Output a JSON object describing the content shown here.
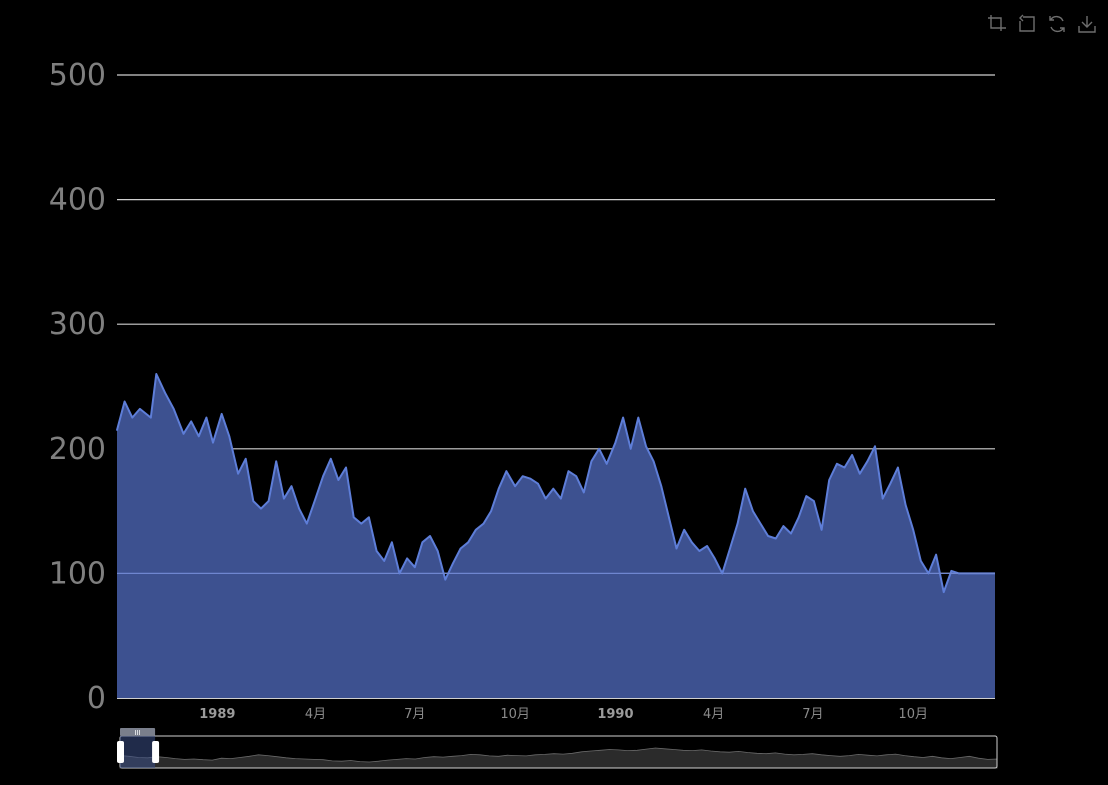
{
  "toolbox": {
    "items": [
      {
        "name": "zoom-area-icon"
      },
      {
        "name": "zoom-reset-icon"
      },
      {
        "name": "restore-icon"
      },
      {
        "name": "save-image-icon"
      }
    ],
    "color": "#6e6e6e"
  },
  "colors": {
    "background": "#000000",
    "area_fill": "#3d5190",
    "line": "#5e7ed8",
    "grid": "#cfcfcf",
    "axis_text": "#7f7f7f"
  },
  "chart_data": {
    "type": "area",
    "title": "",
    "xlabel": "",
    "ylabel": "",
    "ylim": [
      0,
      500
    ],
    "y_ticks": [
      500,
      400,
      300,
      200,
      100,
      0
    ],
    "x_range": [
      "1988-10-01",
      "1990-12-15"
    ],
    "x_ticks": [
      {
        "date": "1989-01-01",
        "label": "1989",
        "bold": true
      },
      {
        "date": "1989-04-01",
        "label": "4月",
        "bold": false
      },
      {
        "date": "1989-07-01",
        "label": "7月",
        "bold": false
      },
      {
        "date": "1989-10-01",
        "label": "10月",
        "bold": false
      },
      {
        "date": "1990-01-01",
        "label": "1990",
        "bold": true
      },
      {
        "date": "1990-04-01",
        "label": "4月",
        "bold": false
      },
      {
        "date": "1990-07-01",
        "label": "7月",
        "bold": false
      },
      {
        "date": "1990-10-01",
        "label": "10月",
        "bold": false
      }
    ],
    "grid": true,
    "points": [
      [
        "1988-10-01",
        215
      ],
      [
        "1988-10-08",
        238
      ],
      [
        "1988-10-15",
        225
      ],
      [
        "1988-10-22",
        232
      ],
      [
        "1988-11-01",
        225
      ],
      [
        "1988-11-06",
        260
      ],
      [
        "1988-11-14",
        245
      ],
      [
        "1988-11-22",
        232
      ],
      [
        "1988-12-01",
        212
      ],
      [
        "1988-12-08",
        222
      ],
      [
        "1988-12-15",
        210
      ],
      [
        "1988-12-22",
        225
      ],
      [
        "1988-12-28",
        205
      ],
      [
        "1989-01-05",
        228
      ],
      [
        "1989-01-12",
        210
      ],
      [
        "1989-01-20",
        180
      ],
      [
        "1989-01-27",
        192
      ],
      [
        "1989-02-03",
        158
      ],
      [
        "1989-02-10",
        152
      ],
      [
        "1989-02-17",
        158
      ],
      [
        "1989-02-24",
        190
      ],
      [
        "1989-03-03",
        160
      ],
      [
        "1989-03-10",
        170
      ],
      [
        "1989-03-17",
        152
      ],
      [
        "1989-03-24",
        140
      ],
      [
        "1989-04-01",
        160
      ],
      [
        "1989-04-08",
        178
      ],
      [
        "1989-04-15",
        192
      ],
      [
        "1989-04-22",
        175
      ],
      [
        "1989-04-29",
        185
      ],
      [
        "1989-05-06",
        145
      ],
      [
        "1989-05-13",
        140
      ],
      [
        "1989-05-20",
        145
      ],
      [
        "1989-05-27",
        118
      ],
      [
        "1989-06-03",
        110
      ],
      [
        "1989-06-10",
        125
      ],
      [
        "1989-06-17",
        100
      ],
      [
        "1989-06-24",
        112
      ],
      [
        "1989-07-01",
        105
      ],
      [
        "1989-07-08",
        125
      ],
      [
        "1989-07-15",
        130
      ],
      [
        "1989-07-22",
        118
      ],
      [
        "1989-07-29",
        95
      ],
      [
        "1989-08-05",
        108
      ],
      [
        "1989-08-12",
        120
      ],
      [
        "1989-08-19",
        125
      ],
      [
        "1989-08-26",
        135
      ],
      [
        "1989-09-02",
        140
      ],
      [
        "1989-09-09",
        150
      ],
      [
        "1989-09-16",
        168
      ],
      [
        "1989-09-23",
        182
      ],
      [
        "1989-10-01",
        170
      ],
      [
        "1989-10-08",
        178
      ],
      [
        "1989-10-15",
        176
      ],
      [
        "1989-10-22",
        172
      ],
      [
        "1989-10-29",
        160
      ],
      [
        "1989-11-05",
        168
      ],
      [
        "1989-11-12",
        160
      ],
      [
        "1989-11-19",
        182
      ],
      [
        "1989-11-26",
        178
      ],
      [
        "1989-12-03",
        165
      ],
      [
        "1989-12-10",
        190
      ],
      [
        "1989-12-17",
        200
      ],
      [
        "1989-12-24",
        188
      ],
      [
        "1990-01-01",
        205
      ],
      [
        "1990-01-08",
        225
      ],
      [
        "1990-01-15",
        200
      ],
      [
        "1990-01-22",
        225
      ],
      [
        "1990-01-29",
        202
      ],
      [
        "1990-02-05",
        190
      ],
      [
        "1990-02-12",
        170
      ],
      [
        "1990-02-19",
        145
      ],
      [
        "1990-02-26",
        120
      ],
      [
        "1990-03-05",
        135
      ],
      [
        "1990-03-12",
        125
      ],
      [
        "1990-03-19",
        118
      ],
      [
        "1990-03-26",
        122
      ],
      [
        "1990-04-02",
        112
      ],
      [
        "1990-04-09",
        100
      ],
      [
        "1990-04-16",
        120
      ],
      [
        "1990-04-23",
        140
      ],
      [
        "1990-04-30",
        168
      ],
      [
        "1990-05-07",
        150
      ],
      [
        "1990-05-14",
        140
      ],
      [
        "1990-05-21",
        130
      ],
      [
        "1990-05-28",
        128
      ],
      [
        "1990-06-04",
        138
      ],
      [
        "1990-06-11",
        132
      ],
      [
        "1990-06-18",
        145
      ],
      [
        "1990-06-25",
        162
      ],
      [
        "1990-07-02",
        158
      ],
      [
        "1990-07-09",
        135
      ],
      [
        "1990-07-16",
        175
      ],
      [
        "1990-07-23",
        188
      ],
      [
        "1990-07-30",
        185
      ],
      [
        "1990-08-06",
        195
      ],
      [
        "1990-08-13",
        180
      ],
      [
        "1990-08-20",
        190
      ],
      [
        "1990-08-27",
        202
      ],
      [
        "1990-09-03",
        160
      ],
      [
        "1990-09-10",
        172
      ],
      [
        "1990-09-17",
        185
      ],
      [
        "1990-09-24",
        155
      ],
      [
        "1990-10-01",
        135
      ],
      [
        "1990-10-08",
        110
      ],
      [
        "1990-10-15",
        100
      ],
      [
        "1990-10-22",
        115
      ],
      [
        "1990-10-29",
        85
      ],
      [
        "1990-11-05",
        102
      ],
      [
        "1990-11-12",
        100
      ]
    ]
  },
  "data_zoom": {
    "start_fraction": 0.0,
    "end_fraction": 0.04,
    "handle_grip": "III",
    "overview_values": [
      60,
      58,
      55,
      54,
      57,
      55,
      52,
      50,
      51,
      49,
      48,
      53,
      52,
      55,
      58,
      62,
      60,
      57,
      54,
      52,
      51,
      50,
      49,
      46,
      45,
      47,
      44,
      43,
      45,
      48,
      50,
      52,
      51,
      55,
      57,
      56,
      58,
      60,
      63,
      62,
      59,
      58,
      61,
      60,
      59,
      62,
      63,
      65,
      64,
      66,
      70,
      72,
      74,
      76,
      75,
      73,
      74,
      77,
      80,
      78,
      76,
      74,
      73,
      75,
      72,
      70,
      69,
      71,
      68,
      66,
      65,
      67,
      64,
      62,
      63,
      65,
      62,
      60,
      58,
      60,
      63,
      61,
      59,
      62,
      64,
      60,
      57,
      55,
      58,
      54,
      52,
      55,
      58,
      53,
      50,
      51
    ]
  }
}
